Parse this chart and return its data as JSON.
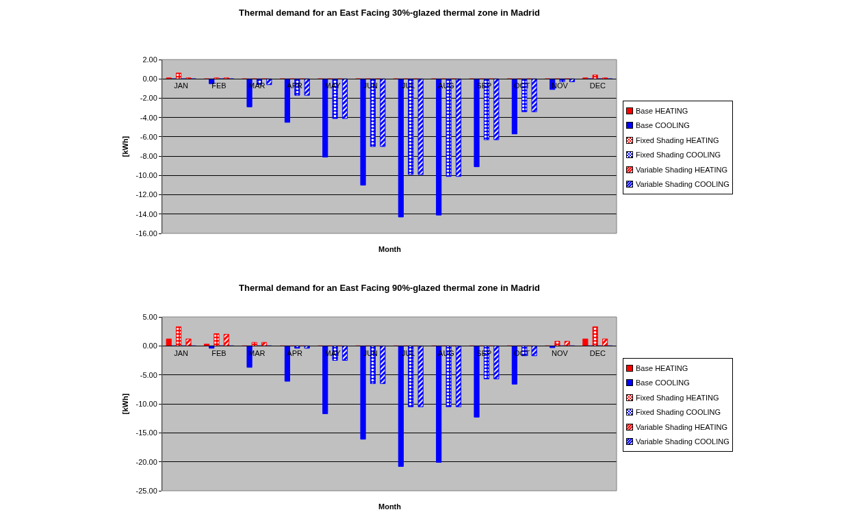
{
  "chart_data": [
    {
      "type": "bar",
      "title": "Thermal demand for an East Facing 30%-glazed thermal zone in Madrid",
      "xlabel": "Month",
      "ylabel": "[kWh]",
      "categories": [
        "JAN",
        "FEB",
        "MAR",
        "APR",
        "MAY",
        "JUN",
        "JUL",
        "AUG",
        "SEP",
        "OCT",
        "NOV",
        "DEC"
      ],
      "ylim": [
        -16,
        2
      ],
      "yticks": [
        {
          "value": 2,
          "label": "2.00"
        },
        {
          "value": 0,
          "label": "0.00"
        },
        {
          "value": -2,
          "label": "-2.00"
        },
        {
          "value": -4,
          "label": "-4.00"
        },
        {
          "value": -6,
          "label": "-6.00"
        },
        {
          "value": -8,
          "label": "-8.00"
        },
        {
          "value": -10,
          "label": "-10.00"
        },
        {
          "value": -12,
          "label": "-12.00"
        },
        {
          "value": -14,
          "label": "-14.00"
        },
        {
          "value": -16,
          "label": "-16.00"
        }
      ],
      "grid": "y",
      "legend": "right",
      "series": [
        {
          "name": "Base HEATING",
          "color": "#ff0000",
          "values": [
            0.1,
            0,
            0,
            0,
            0,
            0,
            0,
            0,
            0,
            0,
            0,
            0.1
          ]
        },
        {
          "name": "Base COOLING",
          "color": "#0000ff",
          "values": [
            0,
            -0.5,
            -2.9,
            -4.5,
            -8.1,
            -11.0,
            -14.3,
            -14.1,
            -9.1,
            -5.7,
            -1.1,
            0
          ]
        },
        {
          "name": "Fixed Shading HEATING",
          "color": "#ff0000",
          "values": [
            0.6,
            0.1,
            0,
            0,
            0,
            0,
            0,
            0,
            0,
            0,
            0,
            0.4
          ]
        },
        {
          "name": "Fixed Shading COOLING",
          "color": "#0000ff",
          "values": [
            0,
            0,
            -0.6,
            -1.7,
            -4.1,
            -7.0,
            -9.9,
            -10.1,
            -6.3,
            -3.4,
            -0.3,
            0
          ]
        },
        {
          "name": "Variable Shading HEATING",
          "color": "#ff0000",
          "values": [
            0.1,
            0.1,
            0,
            0,
            0,
            0,
            0,
            0,
            0,
            0,
            0,
            0.1
          ]
        },
        {
          "name": "Variable Shading COOLING",
          "color": "#0000ff",
          "values": [
            0,
            0,
            -0.6,
            -1.7,
            -4.1,
            -7.0,
            -9.9,
            -10.1,
            -6.3,
            -3.4,
            -0.3,
            0
          ]
        }
      ]
    },
    {
      "type": "bar",
      "title": "Thermal demand for an East Facing 90%-glazed thermal zone in Madrid",
      "xlabel": "Month",
      "ylabel": "[kWh]",
      "categories": [
        "JAN",
        "FEB",
        "MAR",
        "APR",
        "MAY",
        "JUN",
        "JUL",
        "AUG",
        "SEP",
        "OCT",
        "NOV",
        "DEC"
      ],
      "ylim": [
        -25,
        5
      ],
      "yticks": [
        {
          "value": 5,
          "label": "5.00"
        },
        {
          "value": 0,
          "label": "0.00"
        },
        {
          "value": -5,
          "label": "-5.00"
        },
        {
          "value": -10,
          "label": "-10.00"
        },
        {
          "value": -15,
          "label": "-15.00"
        },
        {
          "value": -20,
          "label": "-20.00"
        },
        {
          "value": -25,
          "label": "-25.00"
        }
      ],
      "grid": "y",
      "legend": "right",
      "series": [
        {
          "name": "Base HEATING",
          "color": "#ff0000",
          "values": [
            1.2,
            0.3,
            0,
            0,
            0,
            0,
            0,
            0,
            0,
            0,
            0,
            1.2
          ]
        },
        {
          "name": "Base COOLING",
          "color": "#0000ff",
          "values": [
            0,
            -0.4,
            -3.7,
            -6.1,
            -11.7,
            -16.1,
            -20.8,
            -20.1,
            -12.3,
            -6.6,
            -0.3,
            0
          ]
        },
        {
          "name": "Fixed Shading HEATING",
          "color": "#ff0000",
          "values": [
            3.3,
            2.1,
            0.6,
            0,
            0,
            0,
            0,
            0,
            0,
            0,
            0.8,
            3.3
          ]
        },
        {
          "name": "Fixed Shading COOLING",
          "color": "#0000ff",
          "values": [
            0,
            0,
            0,
            -0.4,
            -2.5,
            -6.5,
            -10.5,
            -10.5,
            -5.7,
            -1.7,
            0,
            0
          ]
        },
        {
          "name": "Variable Shading HEATING",
          "color": "#ff0000",
          "values": [
            1.2,
            2.0,
            0.6,
            0,
            0,
            0,
            0,
            0,
            0,
            0,
            0.8,
            1.2
          ]
        },
        {
          "name": "Variable Shading COOLING",
          "color": "#0000ff",
          "values": [
            0,
            0,
            0,
            -0.4,
            -2.5,
            -6.5,
            -10.5,
            -10.5,
            -5.7,
            -1.7,
            0,
            0
          ]
        }
      ]
    }
  ]
}
